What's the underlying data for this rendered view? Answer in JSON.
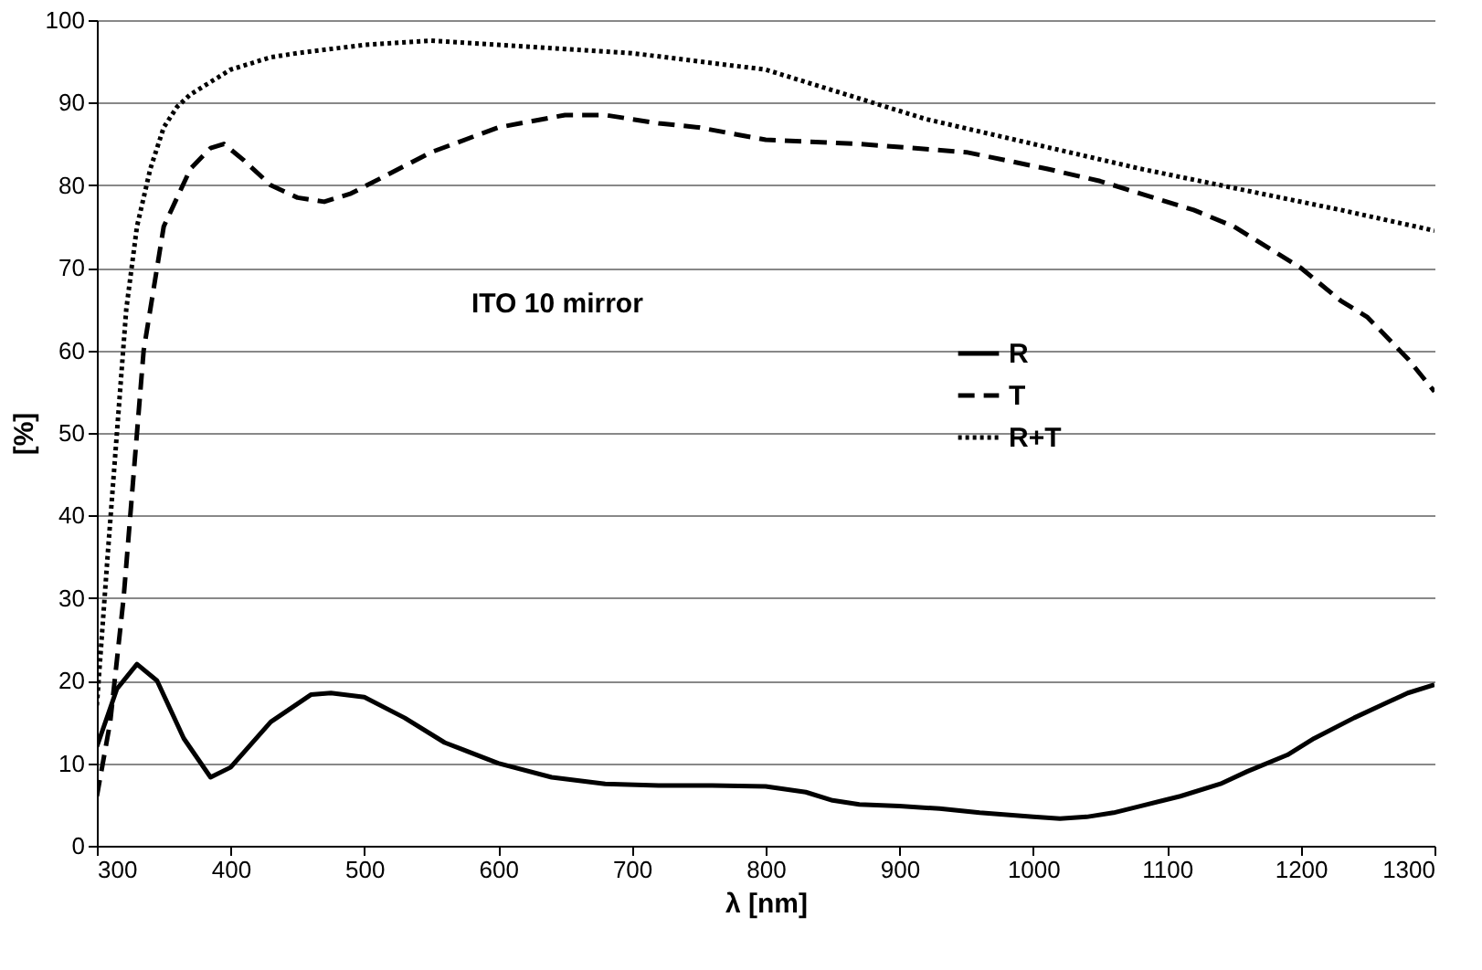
{
  "chart_data": {
    "type": "line",
    "xlabel": "λ [nm]",
    "ylabel": "[%]",
    "xlim": [
      300,
      1300
    ],
    "ylim": [
      0,
      100
    ],
    "xticks": [
      300,
      400,
      500,
      600,
      700,
      800,
      900,
      1000,
      1100,
      1200,
      1300
    ],
    "yticks": [
      0,
      10,
      20,
      30,
      40,
      50,
      60,
      70,
      80,
      90,
      100
    ],
    "grid": "y",
    "legend": "right",
    "annotations": [
      "ITO 10 mirror"
    ],
    "series": [
      {
        "name": "R",
        "color": "#000000",
        "line_style": "solid",
        "x": [
          300,
          315,
          330,
          345,
          365,
          385,
          400,
          430,
          460,
          475,
          500,
          530,
          560,
          600,
          640,
          680,
          720,
          760,
          800,
          830,
          850,
          870,
          900,
          930,
          960,
          1000,
          1020,
          1040,
          1060,
          1080,
          1110,
          1140,
          1160,
          1190,
          1210,
          1240,
          1260,
          1280,
          1300
        ],
        "values": [
          12,
          19,
          22,
          20,
          13,
          8.3,
          9.5,
          15,
          18.3,
          18.5,
          18,
          15.5,
          12.5,
          10,
          8.3,
          7.5,
          7.3,
          7.3,
          7.2,
          6.5,
          5.5,
          5,
          4.8,
          4.5,
          4,
          3.5,
          3.3,
          3.5,
          4,
          4.8,
          6,
          7.5,
          9,
          11,
          13,
          15.5,
          17,
          18.5,
          19.5
        ]
      },
      {
        "name": "T",
        "color": "#000000",
        "line_style": "dashed",
        "x": [
          300,
          310,
          320,
          335,
          350,
          370,
          385,
          395,
          410,
          430,
          450,
          470,
          490,
          520,
          550,
          600,
          650,
          680,
          720,
          750,
          800,
          870,
          950,
          1010,
          1050,
          1080,
          1120,
          1150,
          1200,
          1230,
          1250,
          1280,
          1300
        ],
        "values": [
          6,
          15,
          30,
          60,
          75,
          82,
          84.5,
          85,
          83,
          80,
          78.5,
          78,
          79,
          81.5,
          84,
          87,
          88.5,
          88.5,
          87.5,
          87,
          85.5,
          85,
          84,
          82,
          80.5,
          79,
          77,
          75,
          70,
          66,
          64,
          59,
          55
        ]
      },
      {
        "name": "R+T",
        "color": "#000000",
        "line_style": "dotted",
        "x": [
          300,
          308,
          315,
          322,
          330,
          340,
          350,
          360,
          370,
          385,
          400,
          430,
          450,
          500,
          550,
          600,
          650,
          700,
          750,
          800,
          860,
          920,
          1000,
          1080,
          1170,
          1230,
          1300
        ],
        "values": [
          17,
          35,
          50,
          65,
          75,
          82,
          87,
          89.5,
          91,
          92.5,
          94,
          95.5,
          96,
          97,
          97.5,
          97,
          96.5,
          96,
          95,
          94,
          91,
          88,
          85,
          82,
          79,
          77,
          74.5
        ]
      }
    ]
  }
}
